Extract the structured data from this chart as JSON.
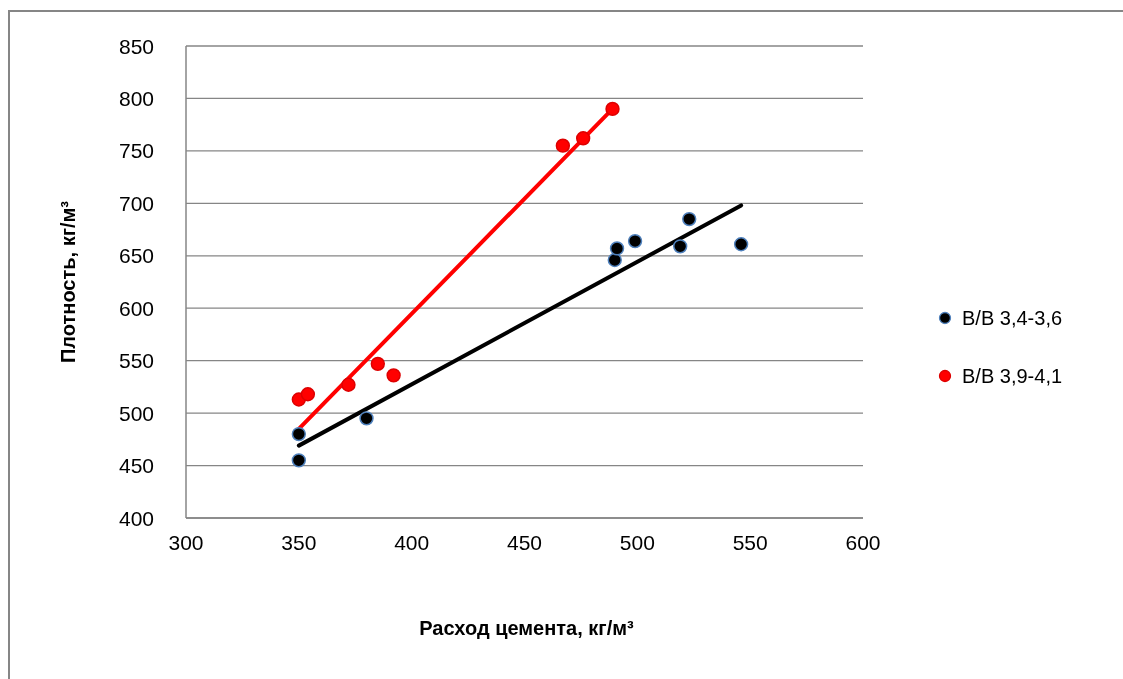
{
  "chart_data": {
    "type": "scatter",
    "xlabel": "Расход цемента, кг/м³",
    "ylabel": "Плотность, кг/м³",
    "xlim": [
      300,
      600
    ],
    "xticks": [
      300,
      350,
      400,
      450,
      500,
      550,
      600
    ],
    "ylim": [
      400,
      850
    ],
    "yticks": [
      400,
      450,
      500,
      550,
      600,
      650,
      700,
      750,
      800,
      850
    ],
    "grid": "y",
    "legend": "right",
    "marker": "circle",
    "series": [
      {
        "name": "B/B 3,4-3,6",
        "color": "#000000",
        "type": "scatter",
        "x": [
          350,
          350,
          380,
          490,
          491,
          499,
          519,
          523,
          546
        ],
        "values": [
          480,
          455,
          495,
          646,
          657,
          664,
          659,
          685,
          661
        ]
      },
      {
        "name": "B/B 3,9-4,1",
        "color": "#ff0000",
        "type": "scatter",
        "x": [
          350,
          354,
          372,
          385,
          392,
          467,
          476,
          489
        ],
        "values": [
          513,
          518,
          527,
          547,
          536,
          755,
          762,
          790
        ]
      },
      {
        "color": "#000000",
        "type": "line",
        "marker": "none",
        "x": [
          350,
          546
        ],
        "values": [
          469,
          698
        ]
      },
      {
        "color": "#ff0000",
        "type": "line",
        "marker": "none",
        "x": [
          350,
          489
        ],
        "values": [
          485,
          790
        ]
      }
    ]
  }
}
